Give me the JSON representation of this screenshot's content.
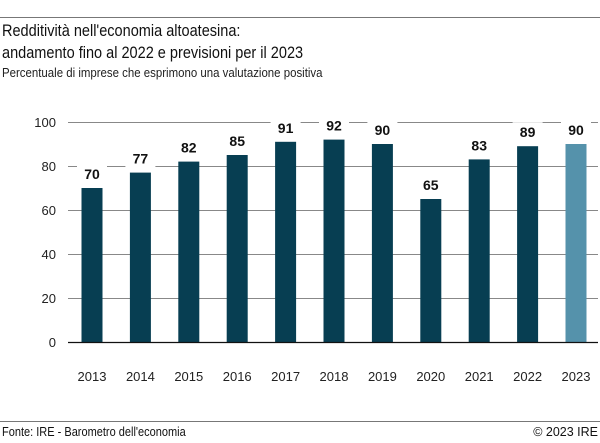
{
  "title_line1": "Redditività nell'economia altoatesina:",
  "title_line2": "andamento fino al 2022 e previsioni per il 2023",
  "subtitle": "Percentuale di imprese che esprimono una valutazione positiva",
  "footer": {
    "source": "Fonte: IRE - Barometro dell'economia",
    "copyright": "© 2023 IRE"
  },
  "chart_data": {
    "type": "bar",
    "categories": [
      "2013",
      "2014",
      "2015",
      "2016",
      "2017",
      "2018",
      "2019",
      "2020",
      "2021",
      "2022",
      "2023"
    ],
    "values": [
      70,
      77,
      82,
      85,
      91,
      92,
      90,
      65,
      83,
      89,
      90
    ],
    "ylim": [
      0,
      100
    ],
    "yticks": [
      0,
      20,
      40,
      60,
      80,
      100
    ],
    "grid": true,
    "colors": {
      "actual": "#073e52",
      "forecast": "#5592ab"
    },
    "forecast_categories": [
      "2023"
    ]
  }
}
